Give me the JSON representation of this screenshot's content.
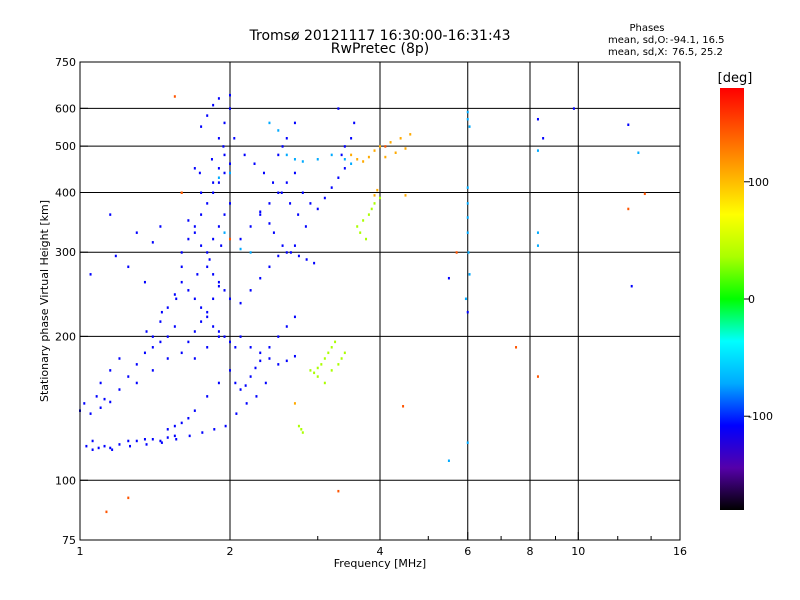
{
  "chart_data": {
    "type": "scatter",
    "title": "Tromsø 20121117 16:30:00-16:31:43",
    "subtitle": "RwPretec (8p)",
    "xlabel": "Frequency [MHz]",
    "ylabel": "Stationary phase Virtual Height [km]",
    "x_scale": "log",
    "y_scale": "log",
    "xlim": [
      1,
      16
    ],
    "ylim": [
      75,
      750
    ],
    "x_ticks": [
      1,
      2,
      4,
      6,
      8,
      10,
      16
    ],
    "x_tick_labels": [
      "1",
      "2",
      "4",
      "6",
      "8",
      "10",
      "16"
    ],
    "y_ticks": [
      75,
      100,
      200,
      300,
      400,
      500,
      600,
      750
    ],
    "y_tick_labels": [
      "75",
      "100",
      "200",
      "300",
      "400",
      "500",
      "600",
      "750"
    ],
    "grid_x": [
      2,
      4,
      6,
      8,
      10
    ],
    "grid_y": [
      100,
      200,
      300,
      400,
      500,
      600
    ],
    "stats": {
      "header": "Phases",
      "o_label": "mean, sd,O:",
      "o_values": "-94.1, 16.5",
      "x_label": "mean, sd,X:",
      "x_values": "76.5, 25.2"
    },
    "colorbar": {
      "title": "[deg]",
      "ticks": [
        100,
        0,
        -100
      ],
      "tick_labels": [
        "100",
        "0",
        "-100"
      ],
      "range": [
        -180,
        180
      ],
      "colormap": [
        "#000000",
        "#5500aa",
        "#0000ff",
        "#00aaff",
        "#00ffff",
        "#00ff00",
        "#aaff00",
        "#ffff00",
        "#ffaa00",
        "#ff5500",
        "#ff0000"
      ]
    },
    "series": [
      {
        "phase": -100,
        "points": [
          [
            1.0,
            140
          ],
          [
            1.02,
            145
          ],
          [
            1.05,
            138
          ],
          [
            1.08,
            150
          ],
          [
            1.1,
            142
          ],
          [
            1.12,
            148
          ],
          [
            1.15,
            146
          ],
          [
            1.03,
            118
          ],
          [
            1.06,
            116
          ],
          [
            1.09,
            117
          ],
          [
            1.12,
            118
          ],
          [
            1.15,
            117
          ],
          [
            1.2,
            119
          ],
          [
            1.25,
            121
          ],
          [
            1.3,
            121
          ],
          [
            1.35,
            122
          ],
          [
            1.4,
            122
          ],
          [
            1.45,
            121
          ],
          [
            1.5,
            123
          ],
          [
            1.55,
            124
          ],
          [
            1.2,
            155
          ],
          [
            1.25,
            165
          ],
          [
            1.3,
            175
          ],
          [
            1.35,
            185
          ],
          [
            1.4,
            190
          ],
          [
            1.45,
            195
          ],
          [
            1.5,
            200
          ],
          [
            1.55,
            210
          ],
          [
            1.3,
            160
          ],
          [
            1.4,
            170
          ],
          [
            1.5,
            180
          ],
          [
            1.6,
            185
          ],
          [
            1.65,
            195
          ],
          [
            1.7,
            205
          ],
          [
            1.75,
            215
          ],
          [
            1.8,
            225
          ],
          [
            1.85,
            240
          ],
          [
            1.9,
            255
          ],
          [
            1.8,
            300
          ],
          [
            1.85,
            320
          ],
          [
            1.9,
            340
          ],
          [
            1.95,
            360
          ],
          [
            2.0,
            380
          ],
          [
            1.85,
            420
          ],
          [
            1.9,
            450
          ],
          [
            1.95,
            480
          ],
          [
            1.9,
            520
          ],
          [
            1.95,
            560
          ],
          [
            2.0,
            600
          ],
          [
            1.85,
            610
          ],
          [
            1.9,
            630
          ],
          [
            2.0,
            640
          ],
          [
            1.75,
            550
          ],
          [
            1.8,
            580
          ],
          [
            1.7,
            450
          ],
          [
            1.75,
            400
          ],
          [
            1.65,
            350
          ],
          [
            1.7,
            330
          ],
          [
            1.75,
            310
          ],
          [
            1.8,
            280
          ],
          [
            1.85,
            270
          ],
          [
            1.9,
            260
          ],
          [
            1.95,
            250
          ],
          [
            2.0,
            240
          ],
          [
            2.1,
            235
          ],
          [
            2.2,
            250
          ],
          [
            2.3,
            265
          ],
          [
            2.4,
            280
          ],
          [
            2.5,
            295
          ],
          [
            2.6,
            300
          ],
          [
            2.7,
            310
          ],
          [
            2.1,
            320
          ],
          [
            2.2,
            340
          ],
          [
            2.3,
            360
          ],
          [
            2.4,
            380
          ],
          [
            2.5,
            400
          ],
          [
            2.6,
            420
          ],
          [
            2.7,
            440
          ],
          [
            2.5,
            480
          ],
          [
            2.55,
            500
          ],
          [
            2.6,
            520
          ],
          [
            2.7,
            560
          ],
          [
            2.8,
            400
          ],
          [
            2.9,
            380
          ],
          [
            3.0,
            370
          ],
          [
            3.1,
            390
          ],
          [
            3.2,
            410
          ],
          [
            3.3,
            430
          ],
          [
            3.4,
            450
          ],
          [
            3.35,
            480
          ],
          [
            3.4,
            500
          ],
          [
            3.5,
            520
          ],
          [
            3.55,
            560
          ],
          [
            2.1,
            200
          ],
          [
            2.2,
            190
          ],
          [
            2.3,
            185
          ],
          [
            2.4,
            180
          ],
          [
            2.5,
            175
          ],
          [
            2.6,
            178
          ],
          [
            2.7,
            182
          ],
          [
            2.0,
            170
          ],
          [
            1.9,
            160
          ],
          [
            1.8,
            150
          ],
          [
            1.7,
            140
          ],
          [
            1.65,
            135
          ],
          [
            1.6,
            132
          ],
          [
            1.55,
            130
          ],
          [
            1.5,
            128
          ],
          [
            2.05,
            160
          ],
          [
            2.1,
            155
          ],
          [
            2.15,
            158
          ],
          [
            2.2,
            165
          ],
          [
            2.25,
            172
          ],
          [
            2.3,
            178
          ],
          [
            2.4,
            190
          ],
          [
            2.5,
            200
          ],
          [
            2.6,
            210
          ],
          [
            2.7,
            220
          ],
          [
            1.6,
            300
          ],
          [
            1.65,
            320
          ],
          [
            1.7,
            340
          ],
          [
            1.75,
            360
          ],
          [
            1.8,
            380
          ],
          [
            1.85,
            400
          ],
          [
            1.9,
            420
          ],
          [
            1.95,
            440
          ],
          [
            2.0,
            460
          ],
          [
            1.6,
            260
          ],
          [
            1.65,
            250
          ],
          [
            1.7,
            240
          ],
          [
            1.75,
            230
          ],
          [
            1.8,
            220
          ],
          [
            1.85,
            210
          ],
          [
            1.9,
            205
          ],
          [
            1.95,
            200
          ],
          [
            2.0,
            195
          ],
          [
            2.05,
            190
          ],
          [
            1.4,
            200
          ],
          [
            1.45,
            215
          ],
          [
            1.5,
            230
          ],
          [
            1.55,
            245
          ],
          [
            1.6,
            280
          ],
          [
            3.3,
            600
          ],
          [
            1.3,
            330
          ],
          [
            1.4,
            315
          ],
          [
            1.45,
            340
          ],
          [
            1.35,
            260
          ],
          [
            1.15,
            360
          ],
          [
            1.25,
            280
          ],
          [
            1.18,
            295
          ],
          [
            1.05,
            270
          ],
          [
            1.1,
            160
          ],
          [
            1.15,
            170
          ],
          [
            1.2,
            180
          ],
          [
            5.5,
            265
          ],
          [
            6.0,
            225
          ],
          [
            8.3,
            570
          ],
          [
            8.5,
            520
          ],
          [
            9.8,
            600
          ],
          [
            12.6,
            555
          ],
          [
            12.8,
            255
          ],
          [
            2.3,
            365
          ],
          [
            2.4,
            345
          ],
          [
            2.45,
            330
          ],
          [
            2.55,
            310
          ],
          [
            2.65,
            300
          ],
          [
            2.75,
            295
          ],
          [
            2.85,
            290
          ],
          [
            2.95,
            285
          ]
        ]
      },
      {
        "phase": -120,
        "points": [
          [
            1.06,
            121
          ],
          [
            1.16,
            116
          ],
          [
            1.26,
            118
          ],
          [
            1.36,
            119
          ],
          [
            1.46,
            120
          ],
          [
            1.56,
            122
          ],
          [
            1.66,
            124
          ],
          [
            1.76,
            126
          ],
          [
            1.86,
            128
          ],
          [
            1.96,
            130
          ],
          [
            2.06,
            138
          ],
          [
            2.16,
            145
          ],
          [
            2.26,
            150
          ],
          [
            2.36,
            160
          ],
          [
            1.7,
            180
          ],
          [
            1.8,
            190
          ],
          [
            1.9,
            200
          ],
          [
            1.72,
            270
          ],
          [
            1.82,
            290
          ],
          [
            1.92,
            310
          ],
          [
            1.74,
            440
          ],
          [
            1.84,
            470
          ],
          [
            1.94,
            500
          ],
          [
            2.04,
            520
          ],
          [
            2.14,
            480
          ],
          [
            2.24,
            460
          ],
          [
            2.34,
            440
          ],
          [
            2.44,
            420
          ],
          [
            2.54,
            400
          ],
          [
            2.64,
            380
          ],
          [
            2.74,
            360
          ],
          [
            2.84,
            340
          ],
          [
            1.36,
            205
          ],
          [
            1.46,
            225
          ],
          [
            1.56,
            240
          ]
        ]
      },
      {
        "phase": -60,
        "points": [
          [
            2.6,
            480
          ],
          [
            2.7,
            470
          ],
          [
            2.8,
            465
          ],
          [
            3.0,
            470
          ],
          [
            3.2,
            480
          ],
          [
            3.4,
            470
          ],
          [
            3.5,
            460
          ],
          [
            2.4,
            560
          ],
          [
            2.5,
            540
          ],
          [
            1.95,
            330
          ],
          [
            2.1,
            305
          ],
          [
            2.2,
            300
          ],
          [
            1.9,
            430
          ],
          [
            2.0,
            440
          ],
          [
            6.0,
            590
          ],
          [
            6.0,
            570
          ],
          [
            6.05,
            550
          ],
          [
            6.0,
            410
          ],
          [
            6.0,
            380
          ],
          [
            6.0,
            355
          ],
          [
            6.0,
            330
          ],
          [
            6.02,
            300
          ],
          [
            6.05,
            270
          ],
          [
            5.95,
            240
          ],
          [
            13.2,
            485
          ],
          [
            8.3,
            490
          ],
          [
            8.3,
            330
          ],
          [
            8.3,
            310
          ],
          [
            5.5,
            110
          ],
          [
            6.0,
            120
          ]
        ]
      },
      {
        "phase": 40,
        "points": [
          [
            2.9,
            170
          ],
          [
            3.0,
            165
          ],
          [
            3.05,
            175
          ],
          [
            3.1,
            180
          ],
          [
            3.15,
            185
          ],
          [
            3.2,
            190
          ],
          [
            3.25,
            195
          ],
          [
            3.1,
            160
          ],
          [
            3.0,
            172
          ],
          [
            2.95,
            168
          ],
          [
            3.2,
            170
          ],
          [
            3.3,
            175
          ],
          [
            3.35,
            180
          ],
          [
            3.4,
            185
          ],
          [
            2.75,
            130
          ],
          [
            2.78,
            128
          ],
          [
            2.8,
            126
          ],
          [
            3.6,
            340
          ],
          [
            3.7,
            350
          ],
          [
            3.8,
            360
          ],
          [
            3.65,
            330
          ],
          [
            3.75,
            320
          ],
          [
            3.9,
            380
          ],
          [
            4.0,
            390
          ],
          [
            3.85,
            370
          ]
        ]
      },
      {
        "phase": 100,
        "points": [
          [
            3.5,
            480
          ],
          [
            3.6,
            470
          ],
          [
            3.7,
            465
          ],
          [
            3.8,
            475
          ],
          [
            3.9,
            490
          ],
          [
            4.0,
            500
          ],
          [
            4.2,
            510
          ],
          [
            4.4,
            520
          ],
          [
            4.6,
            530
          ],
          [
            4.5,
            495
          ],
          [
            4.3,
            485
          ],
          [
            4.1,
            475
          ],
          [
            1.6,
            400
          ],
          [
            2.7,
            145
          ],
          [
            3.9,
            395
          ],
          [
            3.95,
            405
          ],
          [
            4.5,
            395
          ]
        ]
      },
      {
        "phase": 160,
        "points": [
          [
            1.13,
            86
          ],
          [
            1.25,
            92
          ],
          [
            1.55,
            636
          ],
          [
            1.6,
            400
          ],
          [
            2.0,
            320
          ],
          [
            3.3,
            95
          ],
          [
            4.45,
            143
          ],
          [
            5.7,
            300
          ],
          [
            7.5,
            190
          ],
          [
            8.3,
            165
          ],
          [
            12.6,
            370
          ],
          [
            13.6,
            398
          ],
          [
            4.1,
            500
          ]
        ]
      }
    ]
  }
}
